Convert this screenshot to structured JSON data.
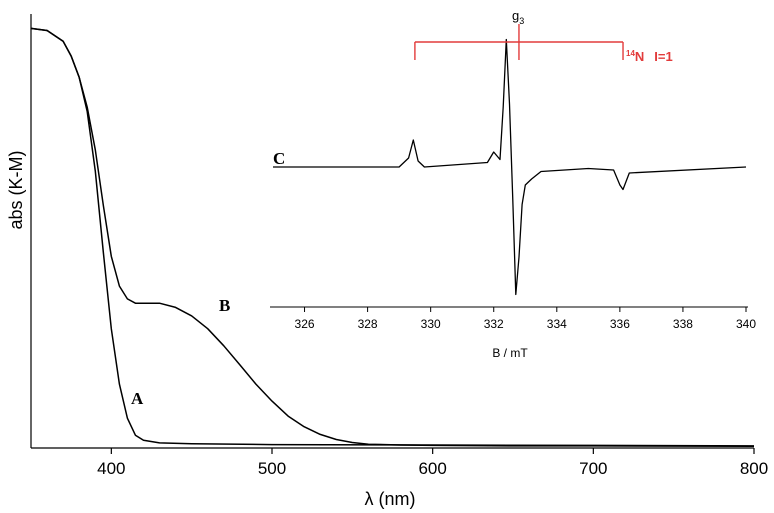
{
  "chart_data": [
    {
      "type": "line",
      "xlabel": "λ (nm)",
      "ylabel": "abs (K-M)",
      "xlim": [
        350,
        800
      ],
      "ylim": [
        0,
        1
      ],
      "x_ticks": [
        400,
        500,
        600,
        700,
        800
      ],
      "y_ticks": [],
      "grid": false,
      "series": [
        {
          "name": "A",
          "x": [
            350,
            360,
            370,
            375,
            380,
            385,
            390,
            395,
            400,
            405,
            410,
            415,
            420,
            430,
            450,
            500,
            600,
            700,
            800
          ],
          "y": [
            0.985,
            0.98,
            0.955,
            0.92,
            0.87,
            0.79,
            0.65,
            0.46,
            0.28,
            0.15,
            0.07,
            0.03,
            0.018,
            0.012,
            0.01,
            0.008,
            0.007,
            0.006,
            0.005
          ]
        },
        {
          "name": "B",
          "x": [
            350,
            360,
            370,
            375,
            380,
            385,
            390,
            395,
            400,
            405,
            410,
            415,
            420,
            430,
            440,
            450,
            460,
            470,
            480,
            490,
            500,
            510,
            520,
            530,
            540,
            550,
            560,
            580,
            600,
            650,
            700,
            800
          ],
          "y": [
            0.985,
            0.98,
            0.955,
            0.92,
            0.87,
            0.8,
            0.7,
            0.57,
            0.45,
            0.38,
            0.35,
            0.34,
            0.34,
            0.34,
            0.33,
            0.31,
            0.28,
            0.24,
            0.195,
            0.15,
            0.11,
            0.075,
            0.05,
            0.032,
            0.02,
            0.013,
            0.009,
            0.007,
            0.006,
            0.005,
            0.005,
            0.004
          ]
        }
      ],
      "annotations": [
        {
          "text": "A",
          "x": 412,
          "y": 0.09
        },
        {
          "text": "B",
          "x": 472,
          "y": 0.32
        }
      ]
    },
    {
      "type": "line",
      "xlabel": "B / mT",
      "ylabel": "",
      "xlim": [
        325,
        340
      ],
      "ylim": [
        -1,
        1
      ],
      "x_ticks": [
        326,
        328,
        330,
        332,
        334,
        336,
        338,
        340
      ],
      "grid": false,
      "series": [
        {
          "name": "C",
          "x": [
            325,
            329.0,
            329.3,
            329.45,
            329.6,
            329.8,
            331.8,
            332.0,
            332.2,
            332.3,
            332.4,
            332.5,
            332.6,
            332.7,
            332.8,
            332.9,
            333.0,
            333.2,
            333.5,
            335.0,
            335.8,
            336.0,
            336.1,
            336.3,
            340
          ],
          "y": [
            0,
            0.0,
            0.06,
            0.18,
            0.04,
            0.0,
            0.03,
            0.1,
            0.05,
            0.4,
            0.85,
            0.42,
            -0.2,
            -0.85,
            -0.6,
            -0.25,
            -0.12,
            -0.08,
            -0.03,
            -0.01,
            -0.02,
            -0.12,
            -0.15,
            -0.04,
            0
          ]
        }
      ],
      "annotations": [
        {
          "text": "C"
        },
        {
          "text": "g3",
          "x": 332.8
        },
        {
          "text": "14N   I=1",
          "stick_positions": [
            329.5,
            332.8,
            336.1
          ]
        }
      ]
    }
  ],
  "labels": {
    "main_xlabel": "λ (nm)",
    "main_ylabel": "abs (K-M)",
    "curve_a": "A",
    "curve_b": "B",
    "curve_c": "C",
    "inset_xlabel": "B / mT",
    "g3_main": "g",
    "g3_sub": "3",
    "n14_sup": "14",
    "n14_main": "N",
    "n14_spin": "I=1"
  },
  "colors": {
    "curve": "#000000",
    "stick": "#e23b3b"
  }
}
